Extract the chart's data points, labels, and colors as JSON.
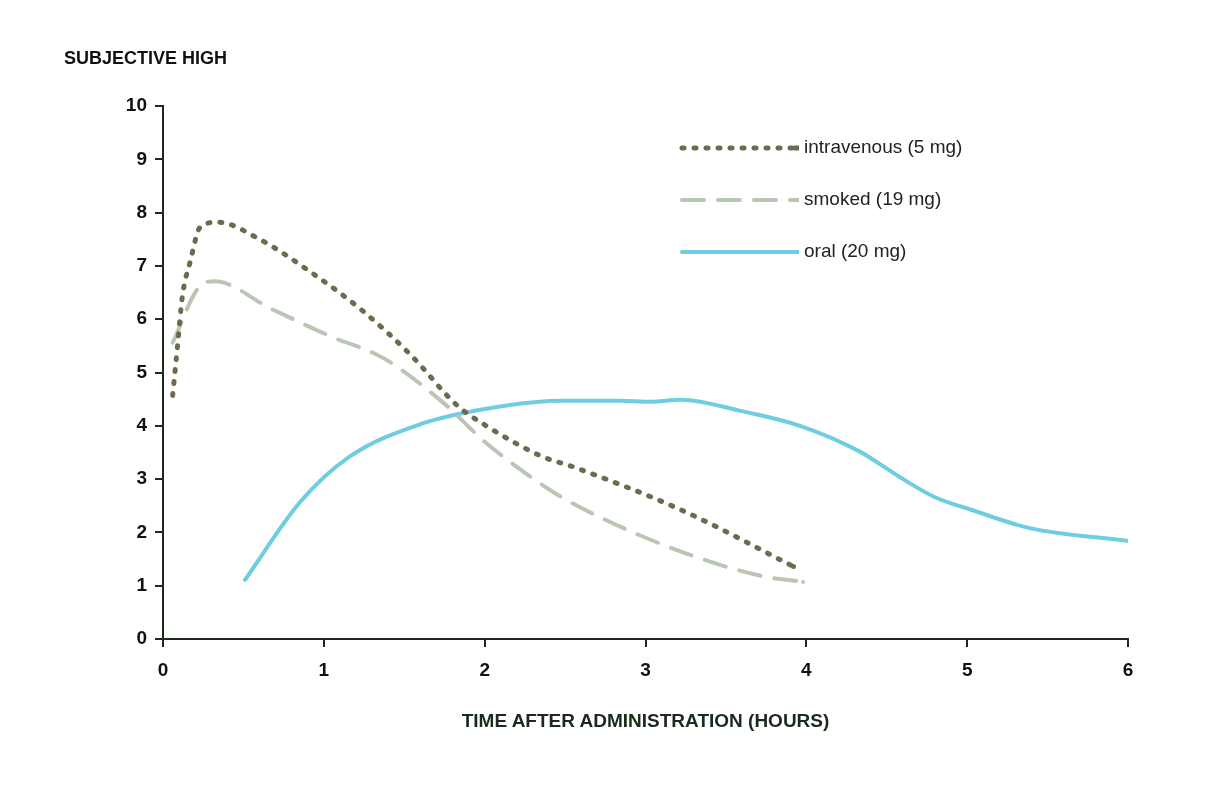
{
  "chart_data": {
    "type": "line",
    "xlabel": "TIME AFTER ADMINISTRATION (HOURS)",
    "ylabel": "SUBJECTIVE HIGH",
    "xlim": [
      0,
      6
    ],
    "xticks": [
      0,
      1,
      2,
      3,
      4,
      5,
      6
    ],
    "ylim": [
      0,
      10
    ],
    "yticks": [
      0,
      1,
      2,
      3,
      4,
      5,
      6,
      7,
      8,
      9,
      10
    ],
    "legend": "top right",
    "marker": "none",
    "series": [
      {
        "name": "intravenous (5 mg)",
        "color": "#6b6b4e",
        "line_style": "dotted",
        "x": [
          0.06,
          0.09,
          0.12,
          0.17,
          0.23,
          0.34,
          0.6,
          0.93,
          1.24,
          1.54,
          1.83,
          2.01,
          2.36,
          2.55,
          3.23,
          3.92
        ],
        "values": [
          4.57,
          5.49,
          6.42,
          7.09,
          7.72,
          7.82,
          7.5,
          6.86,
          6.16,
          5.33,
          4.38,
          4.0,
          3.42,
          3.23,
          2.41,
          1.36
        ]
      },
      {
        "name": "smoked (19 mg)",
        "color": "#bac6b4",
        "line_style": "dashed",
        "x": [
          0.06,
          0.23,
          0.32,
          0.67,
          1.04,
          1.37,
          1.74,
          2.0,
          2.2,
          2.43,
          2.7,
          3.22,
          3.71,
          3.98
        ],
        "values": [
          5.56,
          6.62,
          6.71,
          6.2,
          5.68,
          5.27,
          4.44,
          3.7,
          3.23,
          2.75,
          2.31,
          1.64,
          1.19,
          1.07
        ]
      },
      {
        "name": "oral (20 mg)",
        "color": "#6ecde0",
        "line_style": "solid",
        "x": [
          0.51,
          0.85,
          1.16,
          1.6,
          2.01,
          2.47,
          2.84,
          3.03,
          3.22,
          3.59,
          3.96,
          4.33,
          4.58,
          4.8,
          5.02,
          5.39,
          6.0
        ],
        "values": [
          1.11,
          2.56,
          3.42,
          4.03,
          4.32,
          4.47,
          4.47,
          4.45,
          4.49,
          4.28,
          4.0,
          3.52,
          3.04,
          2.66,
          2.43,
          2.08,
          1.84
        ]
      }
    ]
  }
}
